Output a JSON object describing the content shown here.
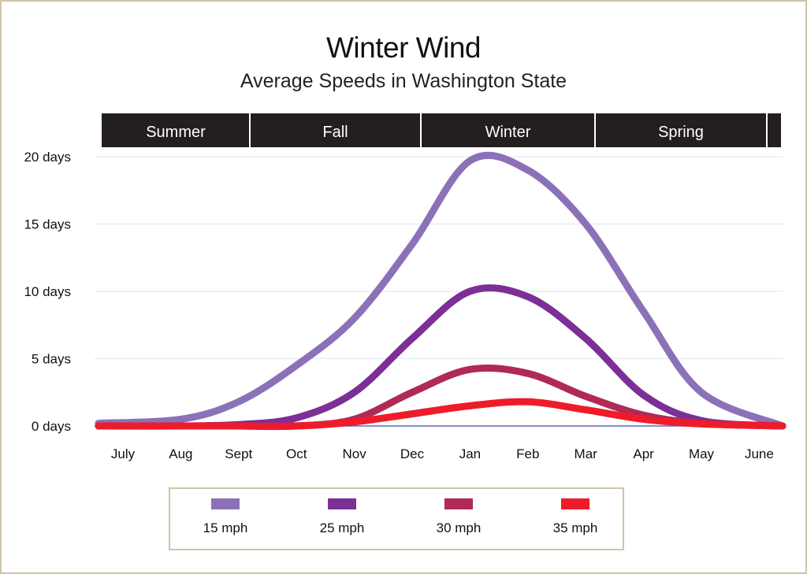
{
  "chart_data": {
    "type": "line",
    "title": "Winter Wind",
    "subtitle": "Average Speeds in Washington State",
    "seasons": [
      "Summer",
      "Fall",
      "Winter",
      "Spring"
    ],
    "categories": [
      "July",
      "Aug",
      "Sept",
      "Oct",
      "Nov",
      "Dec",
      "Jan",
      "Feb",
      "Mar",
      "Apr",
      "May",
      "June"
    ],
    "y_ticks": [
      {
        "value": 0,
        "label": "0 days"
      },
      {
        "value": 5,
        "label": "5 days"
      },
      {
        "value": 10,
        "label": "10 days"
      },
      {
        "value": 15,
        "label": "15 days"
      },
      {
        "value": 20,
        "label": "20 days"
      }
    ],
    "ylim": [
      0,
      20
    ],
    "grid": true,
    "legend_position": "bottom",
    "series": [
      {
        "name": "15 mph",
        "color": "#8b71b8",
        "values": [
          0.2,
          0.5,
          1.8,
          4.5,
          8.0,
          13.5,
          19.7,
          19.0,
          15.0,
          8.5,
          2.5,
          0
        ]
      },
      {
        "name": "25 mph",
        "color": "#7c2f96",
        "values": [
          0,
          0,
          0.1,
          0.6,
          2.5,
          6.5,
          10.0,
          9.6,
          6.5,
          2.3,
          0.4,
          0
        ]
      },
      {
        "name": "30 mph",
        "color": "#b02a55",
        "values": [
          0,
          0,
          0,
          0,
          0.5,
          2.5,
          4.2,
          3.9,
          2.2,
          0.8,
          0.2,
          0
        ]
      },
      {
        "name": "35 mph",
        "color": "#ee1c2b",
        "values": [
          0,
          0,
          0,
          0,
          0.3,
          0.9,
          1.5,
          1.8,
          1.2,
          0.5,
          0.15,
          0
        ]
      }
    ]
  }
}
